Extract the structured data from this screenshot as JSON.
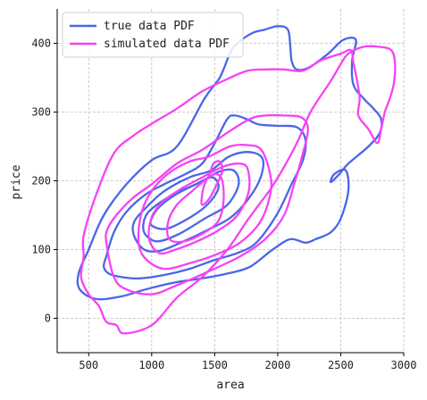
{
  "chart_data": {
    "type": "line",
    "subtype": "kde-contour",
    "title": "",
    "xlabel": "area",
    "ylabel": "price",
    "xlim": [
      250,
      3000
    ],
    "ylim": [
      -50,
      450
    ],
    "xticks": [
      500,
      1000,
      1500,
      2000,
      2500,
      3000
    ],
    "yticks": [
      0,
      100,
      200,
      300,
      400
    ],
    "grid": true,
    "legend_position": "top-left",
    "series": [
      {
        "name": "true data PDF",
        "color": "#4a66e8",
        "contours": [
          [
            [
              1200,
              250
            ],
            [
              1420,
              320
            ],
            [
              1540,
              350
            ],
            [
              1620,
              385
            ],
            [
              1680,
              400
            ],
            [
              1800,
              415
            ],
            [
              1900,
              420
            ],
            [
              2000,
              425
            ],
            [
              2080,
              420
            ],
            [
              2100,
              395
            ],
            [
              2110,
              375
            ],
            [
              2150,
              362
            ],
            [
              2250,
              365
            ],
            [
              2400,
              385
            ],
            [
              2520,
              405
            ],
            [
              2620,
              405
            ],
            [
              2590,
              375
            ],
            [
              2600,
              340
            ],
            [
              2680,
              320
            ],
            [
              2760,
              305
            ],
            [
              2820,
              290
            ],
            [
              2810,
              270
            ],
            [
              2720,
              250
            ],
            [
              2560,
              225
            ],
            [
              2490,
              210
            ],
            [
              2420,
              198
            ],
            [
              2450,
              210
            ],
            [
              2540,
              215
            ],
            [
              2560,
              185
            ],
            [
              2500,
              145
            ],
            [
              2420,
              125
            ],
            [
              2300,
              115
            ],
            [
              2220,
              110
            ],
            [
              2100,
              115
            ],
            [
              1960,
              100
            ],
            [
              1780,
              75
            ],
            [
              1600,
              65
            ],
            [
              1400,
              58
            ],
            [
              1180,
              52
            ],
            [
              950,
              42
            ],
            [
              760,
              32
            ],
            [
              560,
              28
            ],
            [
              430,
              42
            ],
            [
              420,
              65
            ],
            [
              500,
              100
            ],
            [
              620,
              150
            ],
            [
              800,
              195
            ],
            [
              1000,
              230
            ],
            [
              1200,
              250
            ]
          ],
          [
            [
              640,
              90
            ],
            [
              620,
              75
            ],
            [
              660,
              65
            ],
            [
              760,
              60
            ],
            [
              900,
              58
            ],
            [
              1100,
              63
            ],
            [
              1300,
              72
            ],
            [
              1500,
              85
            ],
            [
              1680,
              95
            ],
            [
              1830,
              110
            ],
            [
              1990,
              150
            ],
            [
              2110,
              195
            ],
            [
              2200,
              230
            ],
            [
              2220,
              260
            ],
            [
              2150,
              278
            ],
            [
              2000,
              280
            ],
            [
              1850,
              282
            ],
            [
              1750,
              290
            ],
            [
              1660,
              295
            ],
            [
              1600,
              290
            ],
            [
              1500,
              255
            ],
            [
              1400,
              225
            ],
            [
              1270,
              210
            ],
            [
              1100,
              195
            ],
            [
              950,
              180
            ],
            [
              800,
              155
            ],
            [
              700,
              125
            ],
            [
              640,
              90
            ]
          ],
          [
            [
              860,
              120
            ],
            [
              940,
              100
            ],
            [
              1060,
              98
            ],
            [
              1230,
              110
            ],
            [
              1460,
              130
            ],
            [
              1650,
              150
            ],
            [
              1810,
              185
            ],
            [
              1880,
              215
            ],
            [
              1870,
              235
            ],
            [
              1760,
              242
            ],
            [
              1610,
              235
            ],
            [
              1470,
              215
            ],
            [
              1300,
              205
            ],
            [
              1100,
              185
            ],
            [
              950,
              160
            ],
            [
              860,
              140
            ],
            [
              860,
              120
            ]
          ],
          [
            [
              940,
              125
            ],
            [
              1040,
              112
            ],
            [
              1210,
              122
            ],
            [
              1420,
              145
            ],
            [
              1600,
              165
            ],
            [
              1690,
              195
            ],
            [
              1650,
              215
            ],
            [
              1530,
              213
            ],
            [
              1390,
              198
            ],
            [
              1200,
              183
            ],
            [
              1040,
              165
            ],
            [
              950,
              148
            ],
            [
              940,
              125
            ]
          ],
          [
            [
              1000,
              135
            ],
            [
              1110,
              130
            ],
            [
              1270,
              143
            ],
            [
              1440,
              165
            ],
            [
              1530,
              190
            ],
            [
              1480,
              205
            ],
            [
              1350,
              195
            ],
            [
              1190,
              180
            ],
            [
              1060,
              162
            ],
            [
              1000,
              145
            ],
            [
              1000,
              135
            ]
          ]
        ]
      },
      {
        "name": "simulated data PDF",
        "color": "#f542f5",
        "contours": [
          [
            [
              460,
              120
            ],
            [
              560,
              180
            ],
            [
              700,
              240
            ],
            [
              850,
              265
            ],
            [
              1000,
              283
            ],
            [
              1200,
              305
            ],
            [
              1400,
              330
            ],
            [
              1600,
              348
            ],
            [
              1760,
              360
            ],
            [
              1900,
              362
            ],
            [
              2050,
              362
            ],
            [
              2200,
              360
            ],
            [
              2340,
              375
            ],
            [
              2500,
              385
            ],
            [
              2580,
              390
            ],
            [
              2600,
              372
            ],
            [
              2630,
              345
            ],
            [
              2650,
              320
            ],
            [
              2640,
              295
            ],
            [
              2720,
              275
            ],
            [
              2790,
              255
            ],
            [
              2820,
              275
            ],
            [
              2850,
              300
            ],
            [
              2880,
              315
            ],
            [
              2920,
              340
            ],
            [
              2930,
              372
            ],
            [
              2900,
              390
            ],
            [
              2800,
              395
            ],
            [
              2680,
              395
            ],
            [
              2560,
              385
            ],
            [
              2500,
              370
            ],
            [
              2420,
              345
            ],
            [
              2260,
              300
            ],
            [
              2160,
              258
            ],
            [
              2050,
              220
            ],
            [
              1950,
              190
            ],
            [
              1850,
              165
            ],
            [
              1750,
              140
            ],
            [
              1600,
              100
            ],
            [
              1400,
              60
            ],
            [
              1200,
              30
            ],
            [
              1000,
              -10
            ],
            [
              780,
              -22
            ],
            [
              720,
              -10
            ],
            [
              640,
              -5
            ],
            [
              580,
              18
            ],
            [
              500,
              35
            ],
            [
              440,
              60
            ],
            [
              460,
              90
            ],
            [
              460,
              120
            ]
          ],
          [
            [
              640,
              110
            ],
            [
              700,
              60
            ],
            [
              800,
              42
            ],
            [
              1000,
              35
            ],
            [
              1200,
              48
            ],
            [
              1450,
              68
            ],
            [
              1700,
              90
            ],
            [
              1900,
              115
            ],
            [
              2050,
              150
            ],
            [
              2130,
              195
            ],
            [
              2200,
              240
            ],
            [
              2240,
              275
            ],
            [
              2190,
              292
            ],
            [
              2050,
              295
            ],
            [
              1900,
              295
            ],
            [
              1780,
              290
            ],
            [
              1600,
              270
            ],
            [
              1400,
              245
            ],
            [
              1200,
              225
            ],
            [
              1000,
              195
            ],
            [
              850,
              175
            ],
            [
              720,
              150
            ],
            [
              650,
              130
            ],
            [
              640,
              110
            ]
          ],
          [
            [
              900,
              105
            ],
            [
              960,
              85
            ],
            [
              1100,
              72
            ],
            [
              1300,
              80
            ],
            [
              1500,
              92
            ],
            [
              1700,
              110
            ],
            [
              1860,
              140
            ],
            [
              1940,
              180
            ],
            [
              1940,
              210
            ],
            [
              1870,
              245
            ],
            [
              1760,
              252
            ],
            [
              1620,
              250
            ],
            [
              1450,
              235
            ],
            [
              1300,
              228
            ],
            [
              1140,
              212
            ],
            [
              1020,
              190
            ],
            [
              940,
              165
            ],
            [
              900,
              135
            ],
            [
              900,
              105
            ]
          ],
          [
            [
              980,
              115
            ],
            [
              1060,
              95
            ],
            [
              1190,
              100
            ],
            [
              1360,
              112
            ],
            [
              1530,
              128
            ],
            [
              1680,
              150
            ],
            [
              1770,
              185
            ],
            [
              1760,
              218
            ],
            [
              1690,
              225
            ],
            [
              1560,
              220
            ],
            [
              1400,
              205
            ],
            [
              1230,
              188
            ],
            [
              1090,
              170
            ],
            [
              1000,
              147
            ],
            [
              980,
              115
            ]
          ],
          [
            [
              1140,
              115
            ],
            [
              1260,
              112
            ],
            [
              1420,
              125
            ],
            [
              1530,
              142
            ],
            [
              1570,
              170
            ],
            [
              1560,
              200
            ],
            [
              1510,
              210
            ],
            [
              1430,
              202
            ],
            [
              1320,
              185
            ],
            [
              1200,
              165
            ],
            [
              1130,
              140
            ],
            [
              1140,
              115
            ]
          ],
          [
            [
              1400,
              165
            ],
            [
              1460,
              175
            ],
            [
              1530,
              200
            ],
            [
              1560,
              215
            ],
            [
              1540,
              228
            ],
            [
              1490,
              225
            ],
            [
              1460,
              210
            ],
            [
              1420,
              195
            ],
            [
              1400,
              180
            ],
            [
              1400,
              165
            ]
          ]
        ]
      }
    ]
  }
}
